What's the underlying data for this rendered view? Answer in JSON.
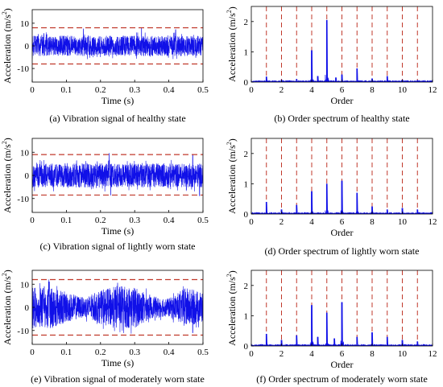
{
  "colors": {
    "signal": "#1010e8",
    "threshold": "#c0392b",
    "axis": "#000000"
  },
  "chart_data": [
    {
      "id": "a",
      "type": "line",
      "caption": "(a) Vibration signal of healthy state",
      "xlabel": "Time (s)",
      "ylabel": "Acceleration (m/s",
      "ylabel_sup": "2",
      "ylabel_end": ")",
      "xlim": [
        0,
        0.5
      ],
      "ylim": [
        -16,
        16
      ],
      "xticks": [
        0,
        0.1,
        0.2,
        0.3,
        0.4,
        0.5
      ],
      "xtick_labels": [
        "0",
        "0.1",
        "0.2",
        "0.3",
        "0.4",
        "0.5"
      ],
      "yticks": [
        -10,
        0,
        10
      ],
      "ytick_labels": [
        "-10",
        "0",
        "10"
      ],
      "thresholds": [
        8,
        -8
      ],
      "signal": {
        "samples": 1400,
        "amplitude": 4.5,
        "envelope": [
          [
            0,
            1
          ],
          [
            0.5,
            1
          ]
        ],
        "spikes": [
          [
            0.15,
            7.5
          ],
          [
            0.32,
            7.8
          ],
          [
            0.42,
            7.2
          ]
        ]
      }
    },
    {
      "id": "b",
      "type": "bar",
      "caption": "(b) Order spectrum of healthy state",
      "xlabel": "Order",
      "ylabel": "Acceleration (m/s",
      "ylabel_sup": "2",
      "ylabel_end": ")",
      "xlim": [
        0,
        12
      ],
      "ylim": [
        0,
        2.5
      ],
      "xticks": [
        0,
        2,
        4,
        6,
        8,
        10,
        12
      ],
      "xtick_labels": [
        "0",
        "2",
        "4",
        "6",
        "8",
        "10",
        "12"
      ],
      "yticks": [
        0,
        1,
        2
      ],
      "ytick_labels": [
        "0",
        "1",
        "2"
      ],
      "marker_orders": [
        1,
        2,
        3,
        4,
        5,
        6,
        7,
        8,
        9,
        10,
        11
      ],
      "peaks": [
        [
          1,
          0.18
        ],
        [
          2,
          0.08
        ],
        [
          3,
          0.1
        ],
        [
          4,
          1.05
        ],
        [
          4.4,
          0.2
        ],
        [
          5,
          2.05
        ],
        [
          5.6,
          0.15
        ],
        [
          6,
          0.25
        ],
        [
          7,
          0.45
        ],
        [
          8,
          0.12
        ],
        [
          9,
          0.2
        ],
        [
          10,
          0.08
        ],
        [
          11,
          0.06
        ]
      ]
    },
    {
      "id": "c",
      "type": "line",
      "caption": "(c) Vibration signal of lightly worn state",
      "xlabel": "Time (s)",
      "ylabel": "Acceleration (m/s",
      "ylabel_sup": "2",
      "ylabel_end": ")",
      "xlim": [
        0,
        0.5
      ],
      "ylim": [
        -16,
        16
      ],
      "xticks": [
        0,
        0.1,
        0.2,
        0.3,
        0.4,
        0.5
      ],
      "xtick_labels": [
        "0",
        "0.1",
        "0.2",
        "0.3",
        "0.4",
        "0.5"
      ],
      "yticks": [
        -10,
        0,
        10
      ],
      "ytick_labels": [
        "-10",
        "0",
        "10"
      ],
      "thresholds": [
        9,
        -8.5
      ],
      "signal": {
        "samples": 1400,
        "amplitude": 5.2,
        "envelope": [
          [
            0,
            1
          ],
          [
            0.5,
            1
          ]
        ],
        "spikes": [
          [
            0.225,
            9.5
          ],
          [
            0.23,
            -8.5
          ],
          [
            0.47,
            9
          ],
          [
            0.49,
            -8.8
          ]
        ]
      }
    },
    {
      "id": "d",
      "type": "bar",
      "caption": "(d) Order spectrum of lightly worn state",
      "xlabel": "Order",
      "ylabel": "Acceleration (m/s",
      "ylabel_sup": "2",
      "ylabel_end": ")",
      "xlim": [
        0,
        12
      ],
      "ylim": [
        0,
        2.5
      ],
      "xticks": [
        0,
        2,
        4,
        6,
        8,
        10,
        12
      ],
      "xtick_labels": [
        "0",
        "2",
        "4",
        "6",
        "8",
        "10",
        "12"
      ],
      "yticks": [
        0,
        1,
        2
      ],
      "ytick_labels": [
        "0",
        "1",
        "2"
      ],
      "marker_orders": [
        1,
        2,
        3,
        4,
        5,
        6,
        7,
        8,
        9,
        10,
        11
      ],
      "peaks": [
        [
          1,
          0.4
        ],
        [
          2,
          0.15
        ],
        [
          3,
          0.3
        ],
        [
          4,
          0.75
        ],
        [
          5,
          1.0
        ],
        [
          6,
          1.1
        ],
        [
          7,
          0.7
        ],
        [
          8,
          0.25
        ],
        [
          9,
          0.15
        ],
        [
          10,
          0.2
        ],
        [
          11,
          0.15
        ]
      ]
    },
    {
      "id": "e",
      "type": "line",
      "caption": "(e) Vibration signal of moderately worn state",
      "xlabel": "Time (s)",
      "ylabel": "Acceleration (m/s",
      "ylabel_sup": "2",
      "ylabel_end": ")",
      "xlim": [
        0,
        0.5
      ],
      "ylim": [
        -16,
        16
      ],
      "xticks": [
        0,
        0.1,
        0.2,
        0.3,
        0.4,
        0.5
      ],
      "xtick_labels": [
        "0",
        "0.1",
        "0.2",
        "0.3",
        "0.4",
        "0.5"
      ],
      "yticks": [
        -10,
        0,
        10
      ],
      "ytick_labels": [
        "-10",
        "0",
        "10"
      ],
      "thresholds": [
        12,
        -12
      ],
      "signal": {
        "samples": 1400,
        "amplitude": 9.5,
        "envelope": [
          [
            0,
            0.9
          ],
          [
            0.05,
            1.0
          ],
          [
            0.1,
            0.7
          ],
          [
            0.15,
            0.45
          ],
          [
            0.2,
            0.75
          ],
          [
            0.25,
            1.0
          ],
          [
            0.3,
            0.95
          ],
          [
            0.35,
            0.5
          ],
          [
            0.4,
            0.4
          ],
          [
            0.45,
            0.9
          ],
          [
            0.5,
            0.7
          ]
        ],
        "spikes": [
          [
            0.05,
            11
          ],
          [
            0.25,
            10.5
          ],
          [
            0.47,
            -11
          ]
        ]
      }
    },
    {
      "id": "f",
      "type": "bar",
      "caption": "(f) Order spectrum of moderately worn state",
      "xlabel": "Order",
      "ylabel": "Acceleration (m/s",
      "ylabel_sup": "2",
      "ylabel_end": ")",
      "xlim": [
        0,
        12
      ],
      "ylim": [
        0,
        2.5
      ],
      "xticks": [
        0,
        2,
        4,
        6,
        8,
        10,
        12
      ],
      "xtick_labels": [
        "0",
        "2",
        "4",
        "6",
        "8",
        "10",
        "12"
      ],
      "yticks": [
        0,
        1,
        2
      ],
      "ytick_labels": [
        "0",
        "1",
        "2"
      ],
      "marker_orders": [
        1,
        2,
        3,
        4,
        5,
        6,
        7,
        8,
        9,
        10,
        11
      ],
      "peaks": [
        [
          1,
          0.4
        ],
        [
          2,
          0.2
        ],
        [
          3,
          0.35
        ],
        [
          4,
          1.35
        ],
        [
          4.4,
          0.3
        ],
        [
          5,
          1.1
        ],
        [
          5.5,
          0.25
        ],
        [
          6,
          1.45
        ],
        [
          7,
          0.3
        ],
        [
          8,
          0.45
        ],
        [
          9,
          0.3
        ],
        [
          10,
          0.2
        ],
        [
          11,
          0.15
        ]
      ]
    }
  ]
}
